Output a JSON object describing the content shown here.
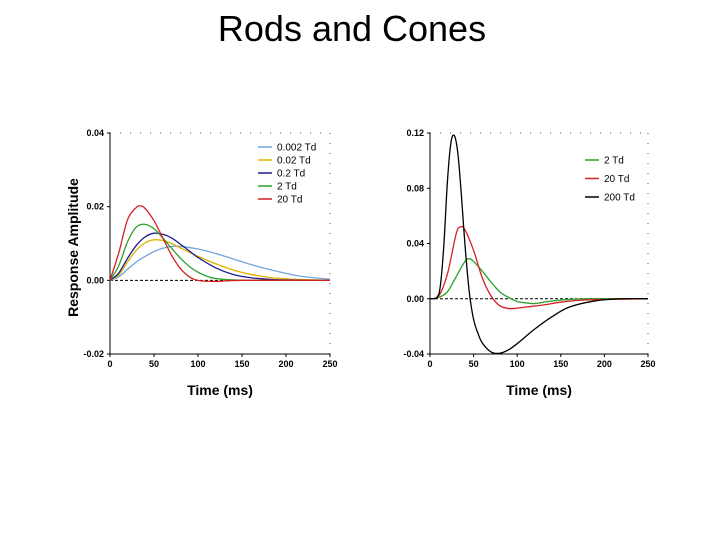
{
  "title": "Rods and Cones",
  "chart_data": [
    {
      "type": "line",
      "name": "rods",
      "xlabel": "Time (ms)",
      "ylabel": "Response Amplitude",
      "xlim": [
        0,
        250
      ],
      "ylim": [
        -0.02,
        0.04
      ],
      "xticks": [
        0,
        50,
        100,
        150,
        200,
        250
      ],
      "yticks": [
        -0.02,
        0.0,
        0.02,
        0.04
      ],
      "ytick_labels": [
        "-0.02",
        "0.00",
        "0.02",
        "0.04"
      ],
      "legend_position": "top-right",
      "baseline": 0,
      "series": [
        {
          "name": "0.002 Td",
          "color": "#6fa8dc",
          "x": [
            0,
            10,
            20,
            30,
            40,
            50,
            60,
            70,
            80,
            100,
            120,
            140,
            160,
            180,
            200,
            220,
            250
          ],
          "y": [
            0,
            0.001,
            0.003,
            0.005,
            0.0065,
            0.0078,
            0.0087,
            0.0092,
            0.0092,
            0.0085,
            0.0073,
            0.0058,
            0.0043,
            0.003,
            0.0019,
            0.001,
            0.0003
          ]
        },
        {
          "name": "0.02 Td",
          "color": "#e0b000",
          "x": [
            0,
            10,
            20,
            30,
            40,
            50,
            60,
            70,
            80,
            100,
            120,
            140,
            160,
            180,
            200,
            220,
            250
          ],
          "y": [
            0,
            0.0015,
            0.005,
            0.0082,
            0.0102,
            0.011,
            0.0108,
            0.01,
            0.0088,
            0.0065,
            0.0045,
            0.0028,
            0.0016,
            0.0008,
            0.0004,
            0.0002,
            0
          ]
        },
        {
          "name": "0.2 Td",
          "color": "#1a1a8c",
          "x": [
            0,
            10,
            20,
            30,
            40,
            50,
            60,
            70,
            80,
            90,
            100,
            120,
            140,
            160,
            180,
            200,
            250
          ],
          "y": [
            0,
            0.002,
            0.006,
            0.0095,
            0.0118,
            0.0128,
            0.0125,
            0.0115,
            0.0098,
            0.008,
            0.0062,
            0.0034,
            0.0016,
            0.0007,
            0.0003,
            0.0001,
            0
          ]
        },
        {
          "name": "2 Td",
          "color": "#2ca02c",
          "x": [
            0,
            10,
            20,
            30,
            40,
            50,
            60,
            70,
            80,
            90,
            100,
            110,
            120,
            140,
            160,
            200,
            250
          ],
          "y": [
            0,
            0.004,
            0.0105,
            0.0145,
            0.0152,
            0.014,
            0.0115,
            0.0087,
            0.006,
            0.0038,
            0.0022,
            0.0011,
            0.0005,
            0.0001,
            0,
            0,
            0
          ]
        },
        {
          "name": "20 Td",
          "color": "#d62020",
          "x": [
            0,
            10,
            20,
            30,
            35,
            40,
            50,
            60,
            70,
            80,
            90,
            100,
            120,
            150,
            250
          ],
          "y": [
            0,
            0.0075,
            0.0165,
            0.0198,
            0.0202,
            0.0195,
            0.0162,
            0.0115,
            0.0068,
            0.0032,
            0.001,
            0,
            -0.0003,
            0,
            0
          ]
        }
      ]
    },
    {
      "type": "line",
      "name": "cones",
      "xlabel": "Time (ms)",
      "ylabel": "",
      "xlim": [
        0,
        250
      ],
      "ylim": [
        -0.04,
        0.12
      ],
      "xticks": [
        0,
        50,
        100,
        150,
        200,
        250
      ],
      "yticks": [
        -0.04,
        0.0,
        0.04,
        0.08,
        0.12
      ],
      "ytick_labels": [
        "-0.04",
        "0.00",
        "0.04",
        "0.08",
        "0.12"
      ],
      "legend_position": "top-right",
      "baseline": 0,
      "series": [
        {
          "name": "2 Td",
          "color": "#2ca02c",
          "x": [
            0,
            10,
            20,
            30,
            40,
            45,
            50,
            60,
            70,
            80,
            90,
            100,
            110,
            120,
            130,
            150,
            180,
            250
          ],
          "y": [
            0,
            0.001,
            0.005,
            0.016,
            0.027,
            0.029,
            0.027,
            0.02,
            0.012,
            0.005,
            0.001,
            -0.002,
            -0.003,
            -0.0035,
            -0.0025,
            -0.001,
            0,
            0
          ]
        },
        {
          "name": "20 Td",
          "color": "#d62020",
          "x": [
            0,
            10,
            20,
            30,
            35,
            40,
            50,
            60,
            70,
            80,
            90,
            100,
            110,
            130,
            150,
            180,
            250
          ],
          "y": [
            0,
            0.002,
            0.018,
            0.047,
            0.052,
            0.05,
            0.035,
            0.015,
            0.002,
            -0.005,
            -0.007,
            -0.0068,
            -0.006,
            -0.0045,
            -0.0025,
            -0.0008,
            0
          ]
        },
        {
          "name": "200 Td",
          "color": "#000000",
          "x": [
            0,
            8,
            12,
            16,
            20,
            24,
            28,
            32,
            36,
            40,
            45,
            50,
            55,
            60,
            70,
            80,
            90,
            100,
            120,
            140,
            160,
            190,
            220,
            250
          ],
          "y": [
            0,
            0.001,
            0.01,
            0.04,
            0.085,
            0.113,
            0.118,
            0.105,
            0.075,
            0.04,
            0.005,
            -0.015,
            -0.025,
            -0.032,
            -0.0385,
            -0.0395,
            -0.037,
            -0.0325,
            -0.022,
            -0.013,
            -0.006,
            -0.0015,
            0,
            0
          ]
        }
      ]
    }
  ]
}
